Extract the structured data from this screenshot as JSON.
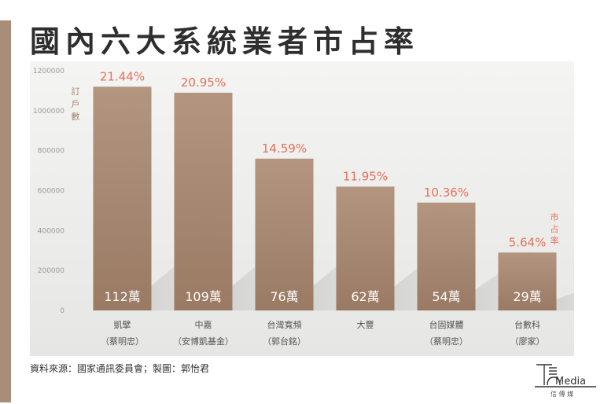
{
  "title": "國內六大系統業者市占率",
  "source": "資料來源：國家通訊委員會；製圖：郭怡君",
  "logo": {
    "name": "Media",
    "subtitle": "信 傳 媒"
  },
  "colors": {
    "bar": "#a6866e",
    "bar_top": "#b89a82",
    "label_red": "#e8705a",
    "panel": "#ececeb",
    "accent_strip": "#a88d79"
  },
  "chart_data": {
    "type": "bar",
    "title": "國內六大系統業者市占率",
    "ylabel": "訂戶數",
    "y2label": "市占率",
    "ylim": [
      0,
      1200000
    ],
    "yticks": [
      0,
      200000,
      400000,
      600000,
      800000,
      1000000,
      1200000
    ],
    "ytick_labels": [
      "0",
      "200000",
      "400000",
      "600000",
      "800000",
      "1000000",
      "1200000"
    ],
    "grid": false,
    "categories": [
      "凱擘",
      "中嘉",
      "台灣寬頻",
      "大豐",
      "台固媒體",
      "台數科"
    ],
    "owners": [
      "（蔡明忠）",
      "（安博凱基金）",
      "（郭台銘）",
      "",
      "（蔡明忠）",
      "（廖家）"
    ],
    "values": [
      1120000,
      1090000,
      760000,
      620000,
      540000,
      290000
    ],
    "value_labels": [
      "112萬",
      "109萬",
      "76萬",
      "62萬",
      "54萬",
      "29萬"
    ],
    "share_labels": [
      "21.44%",
      "20.95%",
      "14.59%",
      "11.95%",
      "10.36%",
      "5.64%"
    ]
  }
}
